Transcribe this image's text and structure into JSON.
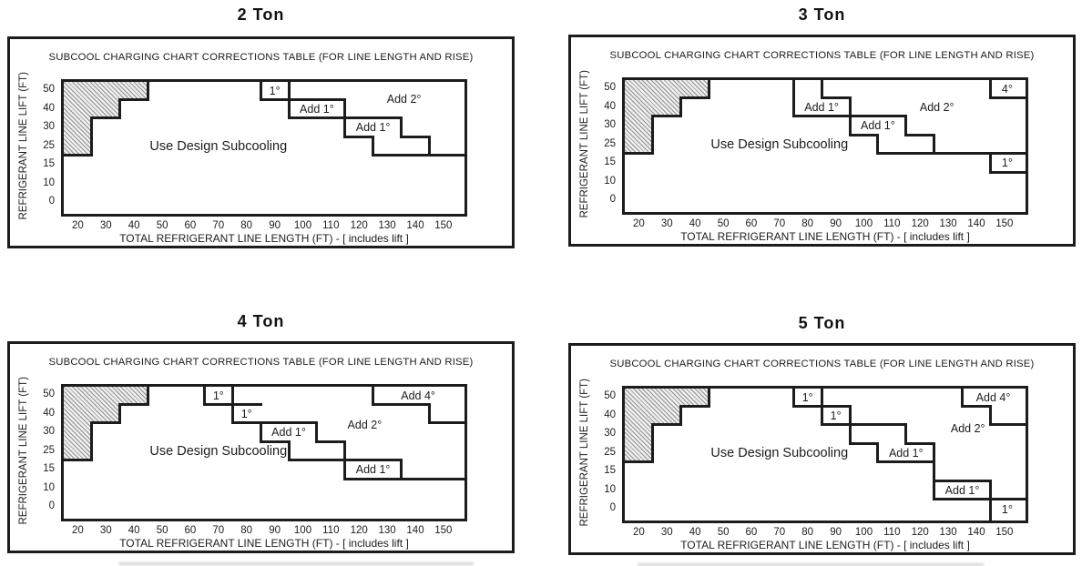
{
  "page": {
    "background": "#ffffff",
    "line_color": "#1c1c1c"
  },
  "shared": {
    "inner_title": "SUBCOOL CHARGING CHART CORRECTIONS TABLE (FOR LINE LENGTH AND RISE)",
    "y_axis_label": "REFRIGERANT LINE LIFT (FT)",
    "x_axis_label": "TOTAL REFRIGERANT LINE LENGTH (FT) - [ includes lift ]",
    "x_ticks": [
      20,
      30,
      40,
      50,
      60,
      70,
      80,
      90,
      100,
      110,
      120,
      130,
      140,
      150
    ],
    "y_ticks": [
      50,
      40,
      30,
      25,
      15,
      10,
      0
    ],
    "x_domain": [
      15,
      157.5
    ],
    "y_axis_note": "y tick rows 0,10,15,25,30,40,50 are evenly spaced (non-linear scale); region steps fall midway between rows",
    "hatch_polygon": [
      [
        15,
        "top"
      ],
      [
        45,
        "top"
      ],
      [
        45,
        45
      ],
      [
        35,
        45
      ],
      [
        35,
        35
      ],
      [
        25,
        35
      ],
      [
        25,
        20
      ],
      [
        15,
        20
      ]
    ],
    "hatch_meaning": "hatched area in upper-left of every chart (line length shorter than lift region)"
  },
  "chart_data": [
    {
      "type": "area",
      "title": "2 Ton",
      "xlabel": "TOTAL REFRIGERANT LINE LENGTH (FT) - [ includes lift ]",
      "ylabel": "REFRIGERANT LINE LIFT (FT)",
      "regions": [
        "Use Design Subcooling",
        "Add 1°",
        "Add 2°"
      ],
      "segments": [
        {
          "o": "v",
          "x": 45,
          "y1": "top",
          "y2": 45
        },
        {
          "o": "h",
          "y": 45,
          "x1": 35,
          "x2": 45
        },
        {
          "o": "v",
          "x": 35,
          "y1": 45,
          "y2": 35
        },
        {
          "o": "h",
          "y": 35,
          "x1": 25,
          "x2": 35
        },
        {
          "o": "v",
          "x": 25,
          "y1": 35,
          "y2": 20
        },
        {
          "o": "h",
          "y": 20,
          "x1": 15,
          "x2": 25
        },
        {
          "o": "v",
          "x": 85,
          "y1": "top",
          "y2": 45
        },
        {
          "o": "v",
          "x": 95,
          "y1": "top",
          "y2": 35
        },
        {
          "o": "h",
          "y": 45,
          "x1": 85,
          "x2": 115
        },
        {
          "o": "h",
          "y": 35,
          "x1": 95,
          "x2": 135
        },
        {
          "o": "v",
          "x": 115,
          "y1": 45,
          "y2": 27.5
        },
        {
          "o": "h",
          "y": 27.5,
          "x1": 115,
          "x2": 125
        },
        {
          "o": "v",
          "x": 125,
          "y1": 27.5,
          "y2": 20
        },
        {
          "o": "h",
          "y": 20,
          "x1": 125,
          "x2": 157.5
        },
        {
          "o": "v",
          "x": 135,
          "y1": 35,
          "y2": 27.5
        },
        {
          "o": "h",
          "y": 27.5,
          "x1": 135,
          "x2": 145
        },
        {
          "o": "v",
          "x": 145,
          "y1": 27.5,
          "y2": 20
        }
      ],
      "labels": [
        {
          "text": "1°",
          "x": 90,
          "y": 49.75
        },
        {
          "text": "Add 1°",
          "x": 105,
          "y": 40
        },
        {
          "text": "Add 1°",
          "x": 125,
          "y": 30
        },
        {
          "text": "Add 2°",
          "x": 136,
          "y": 45
        },
        {
          "text": "Use Design Subcooling",
          "x": 70,
          "y": 25,
          "size": "lg"
        }
      ]
    },
    {
      "type": "area",
      "title": "3 Ton",
      "xlabel": "TOTAL REFRIGERANT LINE LENGTH (FT) - [ includes lift ]",
      "ylabel": "REFRIGERANT LINE LIFT (FT)",
      "regions": [
        "Use Design Subcooling",
        "Add 1°",
        "Add 2°",
        "4°",
        "1°"
      ],
      "segments": [
        {
          "o": "v",
          "x": 45,
          "y1": "top",
          "y2": 45
        },
        {
          "o": "h",
          "y": 45,
          "x1": 35,
          "x2": 45
        },
        {
          "o": "v",
          "x": 35,
          "y1": 45,
          "y2": 35
        },
        {
          "o": "h",
          "y": 35,
          "x1": 25,
          "x2": 35
        },
        {
          "o": "v",
          "x": 25,
          "y1": 35,
          "y2": 20
        },
        {
          "o": "h",
          "y": 20,
          "x1": 15,
          "x2": 25
        },
        {
          "o": "v",
          "x": 75,
          "y1": "top",
          "y2": 35
        },
        {
          "o": "v",
          "x": 85,
          "y1": "top",
          "y2": 45
        },
        {
          "o": "h",
          "y": 45,
          "x1": 85,
          "x2": 95
        },
        {
          "o": "v",
          "x": 95,
          "y1": 45,
          "y2": 27.5
        },
        {
          "o": "h",
          "y": 35,
          "x1": 75,
          "x2": 115
        },
        {
          "o": "h",
          "y": 27.5,
          "x1": 95,
          "x2": 105
        },
        {
          "o": "v",
          "x": 105,
          "y1": 27.5,
          "y2": 20
        },
        {
          "o": "h",
          "y": 20,
          "x1": 105,
          "x2": 157.5
        },
        {
          "o": "v",
          "x": 115,
          "y1": 35,
          "y2": 27.5
        },
        {
          "o": "h",
          "y": 27.5,
          "x1": 115,
          "x2": 125
        },
        {
          "o": "v",
          "x": 125,
          "y1": 27.5,
          "y2": 20
        },
        {
          "o": "v",
          "x": 145,
          "y1": "top",
          "y2": 45
        },
        {
          "o": "h",
          "y": 45,
          "x1": 145,
          "x2": 157.5
        },
        {
          "o": "v",
          "x": 145,
          "y1": 20,
          "y2": 12.5
        },
        {
          "o": "h",
          "y": 12.5,
          "x1": 145,
          "x2": 157.5
        }
      ],
      "labels": [
        {
          "text": "Add 1°",
          "x": 85,
          "y": 40
        },
        {
          "text": "Add 1°",
          "x": 105,
          "y": 30
        },
        {
          "text": "Add 2°",
          "x": 126,
          "y": 40
        },
        {
          "text": "4°",
          "x": 151,
          "y": 49.75
        },
        {
          "text": "1°",
          "x": 151,
          "y": 15
        },
        {
          "text": "Use Design Subcooling",
          "x": 70,
          "y": 25,
          "size": "lg"
        }
      ]
    },
    {
      "type": "area",
      "title": "4 Ton",
      "xlabel": "TOTAL REFRIGERANT LINE LENGTH (FT) - [ includes lift ]",
      "ylabel": "REFRIGERANT LINE LIFT (FT)",
      "regions": [
        "Use Design Subcooling",
        "1°",
        "Add 1°",
        "Add 2°",
        "Add 4°"
      ],
      "segments": [
        {
          "o": "v",
          "x": 45,
          "y1": "top",
          "y2": 45
        },
        {
          "o": "h",
          "y": 45,
          "x1": 35,
          "x2": 45
        },
        {
          "o": "v",
          "x": 35,
          "y1": 45,
          "y2": 35
        },
        {
          "o": "h",
          "y": 35,
          "x1": 25,
          "x2": 35
        },
        {
          "o": "v",
          "x": 25,
          "y1": 35,
          "y2": 20
        },
        {
          "o": "h",
          "y": 20,
          "x1": 15,
          "x2": 25
        },
        {
          "o": "v",
          "x": 65,
          "y1": "top",
          "y2": 45
        },
        {
          "o": "h",
          "y": 45,
          "x1": 65,
          "x2": 85
        },
        {
          "o": "v",
          "x": 75,
          "y1": "top",
          "y2": 35
        },
        {
          "o": "h",
          "y": 35,
          "x1": 75,
          "x2": 105
        },
        {
          "o": "v",
          "x": 85,
          "y1": 35,
          "y2": 27.5
        },
        {
          "o": "h",
          "y": 27.5,
          "x1": 85,
          "x2": 95
        },
        {
          "o": "v",
          "x": 95,
          "y1": 27.5,
          "y2": 20
        },
        {
          "o": "h",
          "y": 20,
          "x1": 95,
          "x2": 135
        },
        {
          "o": "v",
          "x": 105,
          "y1": 35,
          "y2": 27.5
        },
        {
          "o": "h",
          "y": 27.5,
          "x1": 105,
          "x2": 115
        },
        {
          "o": "v",
          "x": 115,
          "y1": 27.5,
          "y2": 12.5
        },
        {
          "o": "h",
          "y": 12.5,
          "x1": 115,
          "x2": 157.5
        },
        {
          "o": "v",
          "x": 135,
          "y1": 20,
          "y2": 12.5
        },
        {
          "o": "v",
          "x": 125,
          "y1": "top",
          "y2": 45
        },
        {
          "o": "h",
          "y": 45,
          "x1": 125,
          "x2": 145
        },
        {
          "o": "v",
          "x": 145,
          "y1": 45,
          "y2": 35
        },
        {
          "o": "h",
          "y": 35,
          "x1": 145,
          "x2": 157.5
        }
      ],
      "labels": [
        {
          "text": "1°",
          "x": 70,
          "y": 49.75
        },
        {
          "text": "1°",
          "x": 80,
          "y": 40
        },
        {
          "text": "Add 1°",
          "x": 95,
          "y": 30
        },
        {
          "text": "Add 1°",
          "x": 125,
          "y": 15
        },
        {
          "text": "Add 2°",
          "x": 122,
          "y": 34
        },
        {
          "text": "Add 4°",
          "x": 141,
          "y": 49.75
        },
        {
          "text": "Use Design Subcooling",
          "x": 70,
          "y": 25,
          "size": "lg"
        }
      ]
    },
    {
      "type": "area",
      "title": "5 Ton",
      "xlabel": "TOTAL REFRIGERANT LINE LENGTH (FT) - [ includes lift ]",
      "ylabel": "REFRIGERANT LINE LIFT (FT)",
      "regions": [
        "Use Design Subcooling",
        "1°",
        "Add 1°",
        "Add 2°",
        "Add 4°"
      ],
      "segments": [
        {
          "o": "v",
          "x": 45,
          "y1": "top",
          "y2": 45
        },
        {
          "o": "h",
          "y": 45,
          "x1": 35,
          "x2": 45
        },
        {
          "o": "v",
          "x": 35,
          "y1": 45,
          "y2": 35
        },
        {
          "o": "h",
          "y": 35,
          "x1": 25,
          "x2": 35
        },
        {
          "o": "v",
          "x": 25,
          "y1": 35,
          "y2": 20
        },
        {
          "o": "h",
          "y": 20,
          "x1": 15,
          "x2": 25
        },
        {
          "o": "v",
          "x": 75,
          "y1": "top",
          "y2": 45
        },
        {
          "o": "h",
          "y": 45,
          "x1": 75,
          "x2": 95
        },
        {
          "o": "v",
          "x": 85,
          "y1": "top",
          "y2": 35
        },
        {
          "o": "h",
          "y": 35,
          "x1": 85,
          "x2": 115
        },
        {
          "o": "v",
          "x": 95,
          "y1": 45,
          "y2": 27.5
        },
        {
          "o": "h",
          "y": 27.5,
          "x1": 95,
          "x2": 105
        },
        {
          "o": "v",
          "x": 105,
          "y1": 27.5,
          "y2": 20
        },
        {
          "o": "h",
          "y": 20,
          "x1": 105,
          "x2": 125
        },
        {
          "o": "v",
          "x": 115,
          "y1": 35,
          "y2": 27.5
        },
        {
          "o": "h",
          "y": 27.5,
          "x1": 115,
          "x2": 125
        },
        {
          "o": "v",
          "x": 125,
          "y1": 27.5,
          "y2": 5
        },
        {
          "o": "h",
          "y": 12.5,
          "x1": 125,
          "x2": 145
        },
        {
          "o": "v",
          "x": 145,
          "y1": 12.5,
          "y2": 5
        },
        {
          "o": "h",
          "y": 5,
          "x1": 125,
          "x2": 157.5
        },
        {
          "o": "v",
          "x": 135,
          "y1": "top",
          "y2": 45
        },
        {
          "o": "h",
          "y": 45,
          "x1": 135,
          "x2": 145
        },
        {
          "o": "v",
          "x": 145,
          "y1": 45,
          "y2": 35
        },
        {
          "o": "h",
          "y": 35,
          "x1": 145,
          "x2": 157.5
        },
        {
          "o": "v",
          "x": 145,
          "y1": 5,
          "y2": "bot"
        }
      ],
      "labels": [
        {
          "text": "1°",
          "x": 80,
          "y": 49.75
        },
        {
          "text": "1°",
          "x": 90,
          "y": 40
        },
        {
          "text": "Add 1°",
          "x": 115,
          "y": 25
        },
        {
          "text": "Add 1°",
          "x": 135,
          "y": 10
        },
        {
          "text": "Add 2°",
          "x": 137,
          "y": 33
        },
        {
          "text": "Add 4°",
          "x": 146,
          "y": 49.75
        },
        {
          "text": "1°",
          "x": 151,
          "y": -0.6
        },
        {
          "text": "Use Design Subcooling",
          "x": 70,
          "y": 25,
          "size": "lg"
        }
      ]
    }
  ]
}
